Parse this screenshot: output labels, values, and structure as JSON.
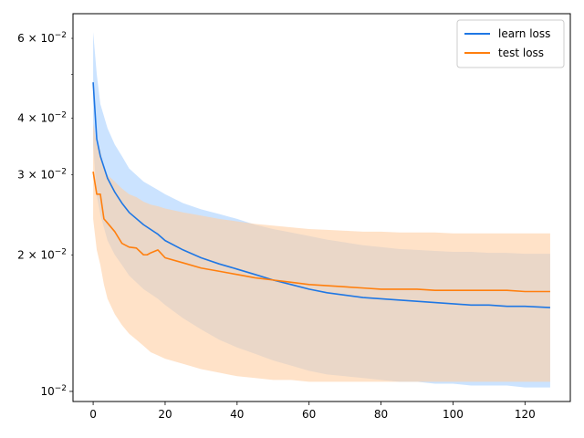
{
  "chart_data": {
    "type": "line",
    "title": "",
    "xlabel": "",
    "ylabel": "",
    "xlim": [
      -5.6,
      132.6
    ],
    "ylim": [
      0.0095,
      0.068
    ],
    "yscale": "log",
    "grid": false,
    "legend_position": "top-right",
    "x_ticks": [
      0,
      20,
      40,
      60,
      80,
      100,
      120
    ],
    "x_tick_labels": [
      "0",
      "20",
      "40",
      "60",
      "80",
      "100",
      "120"
    ],
    "y_major_ticks": [
      {
        "value": 0.01,
        "mantissa": "10",
        "exponent": "−2"
      }
    ],
    "y_minor_ticks": [
      {
        "value": 0.02,
        "mantissa": "2 × 10",
        "exponent": "−2"
      },
      {
        "value": 0.03,
        "mantissa": "3 × 10",
        "exponent": "−2"
      },
      {
        "value": 0.04,
        "mantissa": "4 × 10",
        "exponent": "−2"
      },
      {
        "value": 0.05,
        "mantissa": "",
        "exponent": ""
      },
      {
        "value": 0.06,
        "mantissa": "6 × 10",
        "exponent": "−2"
      }
    ],
    "series": [
      {
        "name": "learn loss",
        "color": "#1f77e4",
        "band_color": "#a8d0ff",
        "x": [
          0,
          1,
          2,
          4,
          6,
          8,
          10,
          14,
          18,
          20,
          25,
          30,
          35,
          40,
          45,
          50,
          55,
          60,
          65,
          70,
          75,
          80,
          85,
          90,
          95,
          100,
          105,
          110,
          115,
          120,
          127
        ],
        "values": [
          0.048,
          0.036,
          0.033,
          0.0295,
          0.0275,
          0.026,
          0.0248,
          0.0233,
          0.0222,
          0.0215,
          0.0205,
          0.0197,
          0.0191,
          0.0186,
          0.0181,
          0.0176,
          0.0172,
          0.0168,
          0.0165,
          0.0163,
          0.0161,
          0.016,
          0.0159,
          0.0158,
          0.0157,
          0.0156,
          0.0155,
          0.0155,
          0.0154,
          0.0154,
          0.0153
        ],
        "upper": [
          0.062,
          0.05,
          0.043,
          0.038,
          0.035,
          0.033,
          0.031,
          0.029,
          0.0278,
          0.0272,
          0.026,
          0.0252,
          0.0246,
          0.024,
          0.0233,
          0.0228,
          0.0224,
          0.022,
          0.0216,
          0.0213,
          0.021,
          0.0208,
          0.0206,
          0.0205,
          0.0204,
          0.0203,
          0.0203,
          0.0202,
          0.0202,
          0.0201,
          0.0201
        ],
        "lower": [
          0.035,
          0.027,
          0.0245,
          0.0215,
          0.02,
          0.019,
          0.018,
          0.0168,
          0.016,
          0.0155,
          0.0145,
          0.0137,
          0.013,
          0.0125,
          0.0121,
          0.0117,
          0.0114,
          0.0111,
          0.0109,
          0.0108,
          0.0107,
          0.0106,
          0.0105,
          0.0105,
          0.0104,
          0.0104,
          0.0103,
          0.0103,
          0.0103,
          0.0102,
          0.0102
        ]
      },
      {
        "name": "test loss",
        "color": "#ff7f0e",
        "band_color": "#ffcfa3",
        "x": [
          0,
          1,
          2,
          3,
          4,
          6,
          8,
          10,
          12,
          14,
          15,
          16,
          18,
          20,
          25,
          30,
          35,
          40,
          45,
          50,
          55,
          60,
          65,
          70,
          75,
          80,
          85,
          90,
          95,
          100,
          105,
          110,
          115,
          120,
          127
        ],
        "values": [
          0.0305,
          0.0272,
          0.0272,
          0.024,
          0.0235,
          0.0225,
          0.0212,
          0.0208,
          0.0207,
          0.02,
          0.02,
          0.0202,
          0.0205,
          0.0197,
          0.0192,
          0.0187,
          0.0184,
          0.0181,
          0.0178,
          0.0176,
          0.0174,
          0.0172,
          0.0171,
          0.017,
          0.0169,
          0.0168,
          0.0168,
          0.0168,
          0.0167,
          0.0167,
          0.0167,
          0.0167,
          0.0167,
          0.0166,
          0.0166
        ],
        "upper": [
          0.039,
          0.035,
          0.034,
          0.031,
          0.03,
          0.029,
          0.028,
          0.0272,
          0.0268,
          0.0262,
          0.026,
          0.0258,
          0.0256,
          0.0253,
          0.0248,
          0.0244,
          0.024,
          0.0237,
          0.0234,
          0.0232,
          0.023,
          0.0228,
          0.0227,
          0.0226,
          0.0225,
          0.0225,
          0.0224,
          0.0224,
          0.0224,
          0.0223,
          0.0223,
          0.0223,
          0.0223,
          0.0223,
          0.0223
        ],
        "lower": [
          0.024,
          0.0205,
          0.019,
          0.0172,
          0.016,
          0.0148,
          0.014,
          0.0134,
          0.013,
          0.0126,
          0.0124,
          0.0122,
          0.012,
          0.0118,
          0.0115,
          0.0112,
          0.011,
          0.0108,
          0.0107,
          0.0106,
          0.0106,
          0.0105,
          0.0105,
          0.0105,
          0.0105,
          0.0105,
          0.0105,
          0.0105,
          0.0105,
          0.0105,
          0.0105,
          0.0105,
          0.0105,
          0.0105,
          0.0105
        ]
      }
    ]
  }
}
